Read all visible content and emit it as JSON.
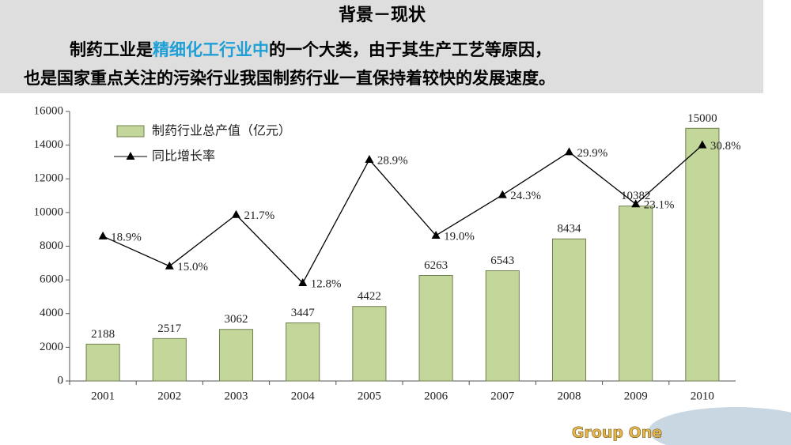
{
  "header": {
    "title": "背景－现状",
    "line1_before": "制药工业是",
    "line1_highlight": "精细化工行业中",
    "line1_after": "的一个大类，由于其生产工艺等原因，",
    "line2": "也是国家重点关注的污染行业我国制药行业一直保持着较快的发展速度。"
  },
  "footer": {
    "brand": "Group One"
  },
  "chart_data": {
    "type": "bar",
    "categories": [
      "2001",
      "2002",
      "2003",
      "2004",
      "2005",
      "2006",
      "2007",
      "2008",
      "2009",
      "2010"
    ],
    "series": [
      {
        "name": "制药行业总产值（亿元）",
        "type": "bar",
        "color": "#c4d79b",
        "values": [
          2188,
          2517,
          3062,
          3447,
          4422,
          6263,
          6543,
          8434,
          10382,
          15000
        ]
      },
      {
        "name": "同比增长率",
        "type": "line",
        "axis": "y2",
        "color": "#000000",
        "values": [
          18.9,
          15.0,
          21.7,
          12.8,
          28.9,
          19.0,
          24.3,
          29.9,
          23.1,
          30.8
        ],
        "value_labels": [
          "18.9%",
          "15.0%",
          "21.7%",
          "12.8%",
          "28.9%",
          "19.0%",
          "24.3%",
          "29.9%",
          "23.1%",
          "30.8%"
        ]
      }
    ],
    "ylim": [
      0,
      16000
    ],
    "yticks": [
      0,
      2000,
      4000,
      6000,
      8000,
      10000,
      12000,
      14000,
      16000
    ],
    "y2lim": [
      0,
      35.2
    ],
    "grid": false,
    "legend": "top-left"
  }
}
